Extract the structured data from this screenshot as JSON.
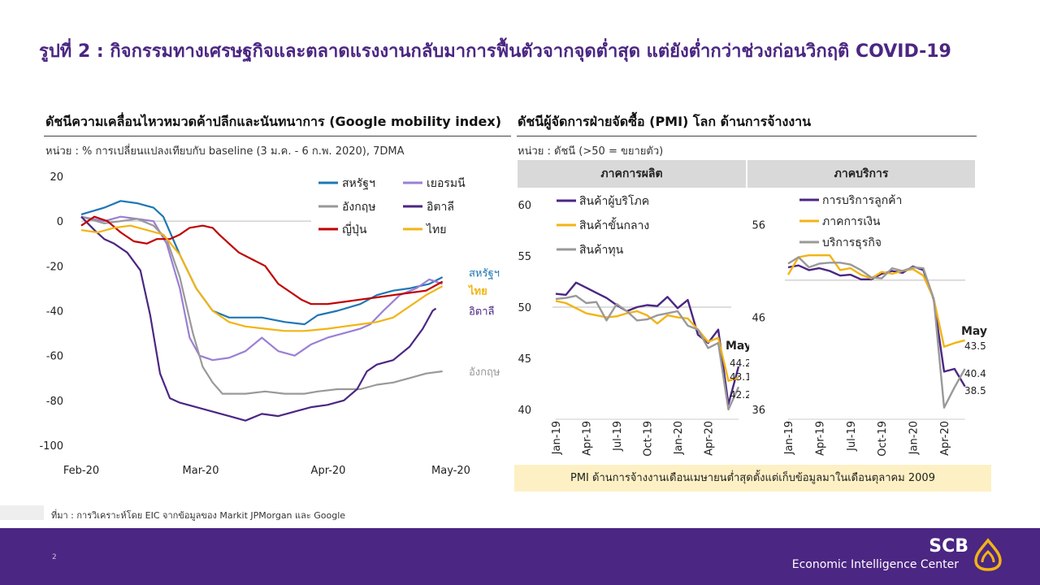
{
  "title": "รูปที่ 2 : กิจกรรมทางเศรษฐกิจและตลาดแรงงานกลับมาการฟื้นตัวจากจุดต่ำสุด แต่ยังต่ำกว่าช่วงก่อนวิกฤติ COVID-19",
  "left": {
    "title": "ดัชนีความเคลื่อนไหวหมวดค้าปลีกและนันทนาการ (Google mobility index)",
    "unit": "หน่วย : % การเปลี่ยนแปลงเทียบกับ baseline (3 ม.ค. - 6 ก.พ. 2020), 7DMA"
  },
  "right": {
    "title": "ดัชนีผู้จัดการฝ่ายจัดซื้อ (PMI) โลก ด้านการจ้างงาน",
    "unit": "หน่วย : ดัชนี (>50 = ขยายตัว)",
    "manufacturing_header": "ภาคการผลิต",
    "services_header": "ภาคบริการ",
    "may_label": "May"
  },
  "note": "PMI ด้านการจ้างงานเดือนเมษายนต่ำสุดตั้งแต่เก็บข้อมูลมาในเดือนตุลาคม 2009",
  "source": "ที่มา : การวิเคราะห์โดย EIC จากข้อมูลของ Markit JPMorgan และ Google",
  "footer": {
    "page": "2",
    "brand": "SCB",
    "center": "Economic Intelligence Center"
  },
  "colors": {
    "purple_brand": "#4b2683",
    "gold": "#f2b414"
  },
  "chart_data": [
    {
      "type": "line",
      "ylim": [
        -100,
        20
      ],
      "yticks": [
        "20",
        "0",
        "-20",
        "-40",
        "-60",
        "-80",
        "-100"
      ],
      "xticks": [
        "Feb-20",
        "Mar-20",
        "Apr-20",
        "May-20"
      ],
      "legend": [
        "สหรัฐฯ",
        "เยอรมนี",
        "อังกฤษ",
        "อิตาลี",
        "ญี่ปุ่น",
        "ไทย"
      ],
      "end_labels": [
        "สหรัฐฯ",
        "ไทย",
        "อิตาลี",
        "อังกฤษ"
      ],
      "series": [
        {
          "name": "สหรัฐฯ",
          "color": "#1f77b4",
          "points": [
            [
              0,
              3
            ],
            [
              7,
              6
            ],
            [
              12,
              9
            ],
            [
              17,
              8
            ],
            [
              22,
              6
            ],
            [
              25,
              2
            ],
            [
              30,
              -15
            ],
            [
              35,
              -30
            ],
            [
              40,
              -40
            ],
            [
              45,
              -43
            ],
            [
              55,
              -43
            ],
            [
              62,
              -45
            ],
            [
              68,
              -46
            ],
            [
              72,
              -42
            ],
            [
              78,
              -40
            ],
            [
              85,
              -37
            ],
            [
              90,
              -33
            ],
            [
              95,
              -31
            ],
            [
              100,
              -30
            ],
            [
              106,
              -28
            ],
            [
              110,
              -25
            ]
          ]
        },
        {
          "name": "เยอรมนี",
          "color": "#9b7fd4",
          "points": [
            [
              0,
              2
            ],
            [
              7,
              0
            ],
            [
              12,
              2
            ],
            [
              17,
              1
            ],
            [
              22,
              0
            ],
            [
              26,
              -10
            ],
            [
              30,
              -30
            ],
            [
              33,
              -52
            ],
            [
              36,
              -60
            ],
            [
              40,
              -62
            ],
            [
              45,
              -61
            ],
            [
              50,
              -58
            ],
            [
              55,
              -52
            ],
            [
              60,
              -58
            ],
            [
              65,
              -60
            ],
            [
              70,
              -55
            ],
            [
              75,
              -52
            ],
            [
              80,
              -50
            ],
            [
              85,
              -48
            ],
            [
              88,
              -46
            ],
            [
              92,
              -40
            ],
            [
              97,
              -33
            ],
            [
              102,
              -30
            ],
            [
              106,
              -26
            ],
            [
              110,
              -28
            ]
          ]
        },
        {
          "name": "อังกฤษ",
          "color": "#999999",
          "points": [
            [
              0,
              2
            ],
            [
              7,
              -1
            ],
            [
              12,
              0
            ],
            [
              17,
              1
            ],
            [
              22,
              -2
            ],
            [
              26,
              -8
            ],
            [
              30,
              -25
            ],
            [
              34,
              -50
            ],
            [
              37,
              -65
            ],
            [
              40,
              -72
            ],
            [
              43,
              -77
            ],
            [
              50,
              -77
            ],
            [
              56,
              -76
            ],
            [
              62,
              -77
            ],
            [
              68,
              -77
            ],
            [
              72,
              -76
            ],
            [
              78,
              -75
            ],
            [
              85,
              -75
            ],
            [
              90,
              -73
            ],
            [
              95,
              -72
            ],
            [
              100,
              -70
            ],
            [
              105,
              -68
            ],
            [
              110,
              -67
            ]
          ]
        },
        {
          "name": "อิตาลี",
          "color": "#4b2683",
          "points": [
            [
              0,
              2
            ],
            [
              4,
              -4
            ],
            [
              7,
              -8
            ],
            [
              10,
              -10
            ],
            [
              14,
              -14
            ],
            [
              18,
              -22
            ],
            [
              21,
              -42
            ],
            [
              24,
              -68
            ],
            [
              27,
              -79
            ],
            [
              30,
              -81
            ],
            [
              35,
              -83
            ],
            [
              40,
              -85
            ],
            [
              45,
              -87
            ],
            [
              50,
              -89
            ],
            [
              55,
              -86
            ],
            [
              60,
              -87
            ],
            [
              65,
              -85
            ],
            [
              70,
              -83
            ],
            [
              75,
              -82
            ],
            [
              80,
              -80
            ],
            [
              84,
              -75
            ],
            [
              87,
              -67
            ],
            [
              90,
              -64
            ],
            [
              95,
              -62
            ],
            [
              100,
              -56
            ],
            [
              104,
              -48
            ],
            [
              107,
              -40
            ],
            [
              108,
              -39
            ]
          ]
        },
        {
          "name": "ญี่ปุ่น",
          "color": "#c00000",
          "points": [
            [
              0,
              -2
            ],
            [
              4,
              2
            ],
            [
              8,
              0
            ],
            [
              12,
              -5
            ],
            [
              16,
              -9
            ],
            [
              20,
              -10
            ],
            [
              23,
              -8
            ],
            [
              27,
              -8
            ],
            [
              30,
              -6
            ],
            [
              33,
              -3
            ],
            [
              37,
              -2
            ],
            [
              40,
              -3
            ],
            [
              42,
              -6
            ],
            [
              45,
              -10
            ],
            [
              48,
              -14
            ],
            [
              52,
              -17
            ],
            [
              56,
              -20
            ],
            [
              60,
              -28
            ],
            [
              64,
              -32
            ],
            [
              67,
              -35
            ],
            [
              70,
              -37
            ],
            [
              75,
              -37
            ],
            [
              80,
              -36
            ],
            [
              85,
              -35
            ],
            [
              90,
              -34
            ],
            [
              95,
              -33
            ],
            [
              100,
              -32
            ],
            [
              105,
              -31
            ],
            [
              110,
              -27
            ]
          ]
        },
        {
          "name": "ไทย",
          "color": "#f2b414",
          "points": [
            [
              0,
              -4
            ],
            [
              5,
              -5
            ],
            [
              10,
              -3
            ],
            [
              15,
              -2
            ],
            [
              20,
              -4
            ],
            [
              25,
              -6
            ],
            [
              30,
              -15
            ],
            [
              35,
              -30
            ],
            [
              40,
              -40
            ],
            [
              45,
              -45
            ],
            [
              50,
              -47
            ],
            [
              56,
              -48
            ],
            [
              62,
              -49
            ],
            [
              68,
              -49
            ],
            [
              75,
              -48
            ],
            [
              80,
              -47
            ],
            [
              85,
              -46
            ],
            [
              90,
              -45
            ],
            [
              95,
              -43
            ],
            [
              100,
              -38
            ],
            [
              105,
              -33
            ],
            [
              110,
              -29
            ]
          ]
        }
      ]
    },
    {
      "type": "line",
      "ylim": [
        40,
        60
      ],
      "yticks": [
        "60",
        "55",
        "50",
        "45",
        "40"
      ],
      "xticks": [
        "Jan-19",
        "Apr-19",
        "Jul-19",
        "Oct-19",
        "Jan-20",
        "Apr-20"
      ],
      "legend": [
        "สินค้าผู้บริโภค",
        "สินค้าขั้นกลาง",
        "สินค้าทุน"
      ],
      "end_values": [
        "44.2",
        "43.1",
        "42.2"
      ],
      "series": [
        {
          "name": "สินค้าผู้บริโภค",
          "color": "#4b2683",
          "values": [
            51.3,
            51.2,
            52.4,
            51.9,
            51.4,
            50.9,
            50.2,
            49.6,
            50.0,
            50.2,
            50.1,
            51.0,
            49.9,
            50.7,
            47.3,
            46.5,
            47.8,
            40.5,
            44.2
          ]
        },
        {
          "name": "สินค้าขั้นกลาง",
          "color": "#f2b414",
          "values": [
            50.6,
            50.4,
            49.9,
            49.4,
            49.2,
            49.0,
            49.1,
            49.4,
            49.6,
            49.2,
            48.4,
            49.2,
            49.0,
            48.9,
            47.8,
            46.6,
            47.0,
            42.8,
            43.1
          ]
        },
        {
          "name": "สินค้าทุน",
          "color": "#999999",
          "values": [
            50.8,
            50.9,
            51.1,
            50.4,
            50.5,
            48.7,
            50.3,
            49.6,
            48.7,
            48.8,
            49.2,
            49.4,
            49.6,
            48.2,
            47.8,
            46.0,
            46.5,
            40.0,
            42.2
          ]
        }
      ]
    },
    {
      "type": "line",
      "ylim": [
        36,
        58
      ],
      "yticks": [
        "56",
        "46",
        "36"
      ],
      "xticks": [
        "Jan-19",
        "Apr-19",
        "Jul-19",
        "Oct-19",
        "Jan-20",
        "Apr-20"
      ],
      "legend": [
        "การบริการลูกค้า",
        "ภาคการเงิน",
        "บริการธุรกิจ"
      ],
      "end_values": [
        "43.5",
        "40.4",
        "38.5"
      ],
      "series": [
        {
          "name": "การบริการลูกค้า",
          "color": "#4b2683",
          "values": [
            51.4,
            51.6,
            51.1,
            51.3,
            51.0,
            50.5,
            50.6,
            50.1,
            50.1,
            50.7,
            51.0,
            50.8,
            51.5,
            51.1,
            47.9,
            40.1,
            40.4,
            38.5
          ]
        },
        {
          "name": "ภาคการเงิน",
          "color": "#f2b414",
          "values": [
            50.6,
            52.5,
            52.7,
            52.7,
            52.7,
            51.1,
            51.3,
            50.6,
            50.2,
            50.9,
            50.7,
            51.0,
            51.2,
            50.5,
            48.0,
            42.8,
            43.2,
            43.5
          ]
        },
        {
          "name": "บริการธุรกิจ",
          "color": "#999999",
          "values": [
            51.8,
            52.5,
            51.4,
            51.8,
            51.9,
            51.9,
            51.7,
            51.1,
            50.3,
            50.2,
            51.3,
            51.0,
            51.4,
            51.3,
            48.0,
            36.2,
            38.4,
            40.4
          ]
        }
      ]
    }
  ]
}
